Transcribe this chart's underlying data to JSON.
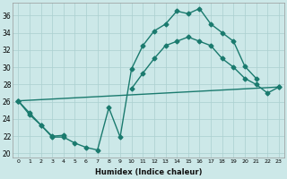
{
  "xlabel": "Humidex (Indice chaleur)",
  "xlim": [
    -0.5,
    23.5
  ],
  "ylim": [
    19.5,
    37.5
  ],
  "xtick_labels": [
    "0",
    "1",
    "2",
    "3",
    "4",
    "5",
    "6",
    "7",
    "8",
    "9",
    "10",
    "11",
    "12",
    "13",
    "14",
    "15",
    "16",
    "17",
    "18",
    "19",
    "20",
    "21",
    "22",
    "23"
  ],
  "ytick_values": [
    20,
    22,
    24,
    26,
    28,
    30,
    32,
    34,
    36
  ],
  "background_color": "#cce8e8",
  "line_color": "#1a7a6e",
  "grid_color": "#aacfcf",
  "line1_x": [
    0,
    1,
    2,
    3,
    4,
    5,
    6,
    7,
    8,
    9,
    10,
    11,
    12,
    13,
    14,
    15,
    16,
    17,
    18,
    19,
    20,
    21
  ],
  "line1_y": [
    26.1,
    24.7,
    23.3,
    21.9,
    21.9,
    21.2,
    20.7,
    20.4,
    25.3,
    21.9,
    29.8,
    32.5,
    34.2,
    35.0,
    36.5,
    36.2,
    36.8,
    35.0,
    34.0,
    33.0,
    30.1,
    28.7
  ],
  "line2_seg1_x": [
    0,
    1,
    2,
    3,
    4
  ],
  "line2_seg1_y": [
    26.1,
    24.5,
    23.3,
    22.0,
    22.1
  ],
  "line2_seg2_x": [
    10,
    11,
    12,
    13,
    14,
    15,
    16,
    17,
    18,
    19,
    20,
    21,
    22,
    23
  ],
  "line2_seg2_y": [
    27.5,
    29.3,
    31.0,
    32.5,
    33.0,
    33.5,
    33.0,
    32.5,
    31.0,
    30.0,
    28.7,
    28.0,
    27.0,
    27.7
  ],
  "line3_x": [
    0,
    23
  ],
  "line3_y": [
    26.1,
    27.7
  ],
  "marker": "D",
  "markersize": 2.5,
  "linewidth": 1.0
}
